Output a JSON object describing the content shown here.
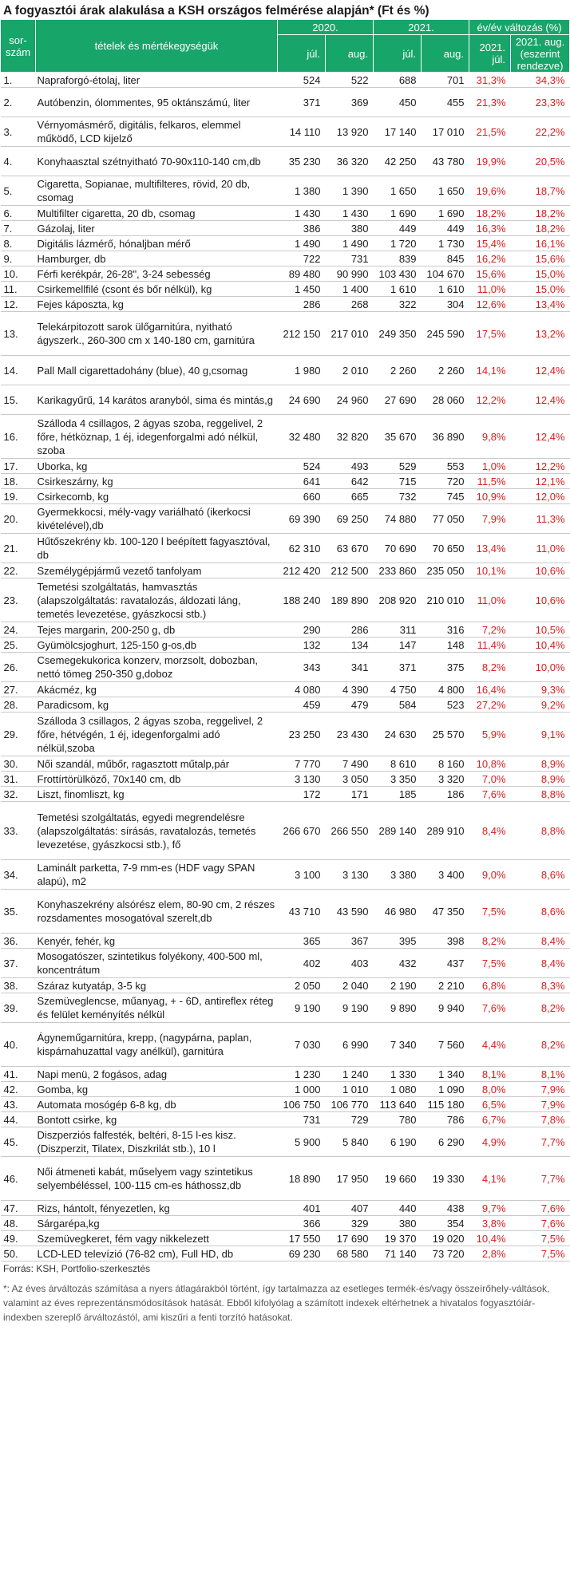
{
  "title": "A fogyasztói árak alakulása a KSH országos felmérése alapján* (Ft és %)",
  "header": {
    "no": "sor-szám",
    "item": "tételek és mértékegységük",
    "y2020": "2020.",
    "y2021": "2021.",
    "change": "év/év változás (%)",
    "jul": "júl.",
    "aug": "aug.",
    "chg_jul": "2021. júl.",
    "chg_aug": "2021. aug. (eszerint rendezve)"
  },
  "rows": [
    {
      "no": "1.",
      "item": "Napraforgó-étolaj, liter",
      "v1": "524",
      "v2": "522",
      "v3": "688",
      "v4": "701",
      "p1": "31,3%",
      "p2": "34,3%"
    },
    {
      "no": "2.",
      "item": "Autóbenzin, ólommentes, 95 oktánszámú, liter",
      "v1": "371",
      "v2": "369",
      "v3": "450",
      "v4": "455",
      "p1": "21,3%",
      "p2": "23,3%"
    },
    {
      "no": "3.",
      "item": "Vérnyomásmérő, digitális, felkaros, elemmel működő, LCD kijelző",
      "v1": "14 110",
      "v2": "13 920",
      "v3": "17 140",
      "v4": "17 010",
      "p1": "21,5%",
      "p2": "22,2%"
    },
    {
      "no": "4.",
      "item": "Konyhaasztal szétnyitható 70-90x110-140 cm,db",
      "v1": "35 230",
      "v2": "36 320",
      "v3": "42 250",
      "v4": "43 780",
      "p1": "19,9%",
      "p2": "20,5%"
    },
    {
      "no": "5.",
      "item": "Cigaretta, Sopianae, multifilteres, rövid, 20 db, csomag",
      "v1": "1 380",
      "v2": "1 390",
      "v3": "1 650",
      "v4": "1 650",
      "p1": "19,6%",
      "p2": "18,7%"
    },
    {
      "no": "6.",
      "item": "Multifilter cigaretta, 20 db, csomag",
      "v1": "1 430",
      "v2": "1 430",
      "v3": "1 690",
      "v4": "1 690",
      "p1": "18,2%",
      "p2": "18,2%"
    },
    {
      "no": "7.",
      "item": "Gázolaj, liter",
      "v1": "386",
      "v2": "380",
      "v3": "449",
      "v4": "449",
      "p1": "16,3%",
      "p2": "18,2%"
    },
    {
      "no": "8.",
      "item": "Digitális lázmérő, hónaljban mérő",
      "v1": "1 490",
      "v2": "1 490",
      "v3": "1 720",
      "v4": "1 730",
      "p1": "15,4%",
      "p2": "16,1%"
    },
    {
      "no": "9.",
      "item": "Hamburger, db",
      "v1": "722",
      "v2": "731",
      "v3": "839",
      "v4": "845",
      "p1": "16,2%",
      "p2": "15,6%"
    },
    {
      "no": "10.",
      "item": "Férfi kerékpár, 26-28\", 3-24 sebesség",
      "v1": "89 480",
      "v2": "90 990",
      "v3": "103 430",
      "v4": "104 670",
      "p1": "15,6%",
      "p2": "15,0%"
    },
    {
      "no": "11.",
      "item": "Csirkemellfilé (csont és bőr nélkül), kg",
      "v1": "1 450",
      "v2": "1 400",
      "v3": "1 610",
      "v4": "1 610",
      "p1": "11,0%",
      "p2": "15,0%"
    },
    {
      "no": "12.",
      "item": "Fejes káposzta, kg",
      "v1": "286",
      "v2": "268",
      "v3": "322",
      "v4": "304",
      "p1": "12,6%",
      "p2": "13,4%"
    },
    {
      "no": "13.",
      "item": "Telekárpitozott sarok ülőgarnitúra, nyitható ágyszerk., 260-300 cm x 140-180 cm, garnitúra",
      "v1": "212 150",
      "v2": "217 010",
      "v3": "249 350",
      "v4": "245 590",
      "p1": "17,5%",
      "p2": "13,2%"
    },
    {
      "no": "14.",
      "item": "Pall Mall cigarettadohány (blue), 40 g,csomag",
      "v1": "1 980",
      "v2": "2 010",
      "v3": "2 260",
      "v4": "2 260",
      "p1": "14,1%",
      "p2": "12,4%"
    },
    {
      "no": "15.",
      "item": "Karikagyűrű, 14 karátos aranyból, sima és mintás,g",
      "v1": "24 690",
      "v2": "24 960",
      "v3": "27 690",
      "v4": "28 060",
      "p1": "12,2%",
      "p2": "12,4%"
    },
    {
      "no": "16.",
      "item": "Szálloda 4 csillagos, 2 ágyas szoba, reggelivel, 2 főre, hétköznap, 1 éj, idegenforgalmi adó nélkül, szoba",
      "v1": "32 480",
      "v2": "32 820",
      "v3": "35 670",
      "v4": "36 890",
      "p1": "9,8%",
      "p2": "12,4%"
    },
    {
      "no": "17.",
      "item": "Uborka, kg",
      "v1": "524",
      "v2": "493",
      "v3": "529",
      "v4": "553",
      "p1": "1,0%",
      "p2": "12,2%"
    },
    {
      "no": "18.",
      "item": "Csirkeszárny, kg",
      "v1": "641",
      "v2": "642",
      "v3": "715",
      "v4": "720",
      "p1": "11,5%",
      "p2": "12,1%"
    },
    {
      "no": "19.",
      "item": "Csirkecomb, kg",
      "v1": "660",
      "v2": "665",
      "v3": "732",
      "v4": "745",
      "p1": "10,9%",
      "p2": "12,0%"
    },
    {
      "no": "20.",
      "item": "Gyermekkocsi, mély-vagy variálható (ikerkocsi kivételével),db",
      "v1": "69 390",
      "v2": "69 250",
      "v3": "74 880",
      "v4": "77 050",
      "p1": "7,9%",
      "p2": "11,3%"
    },
    {
      "no": "21.",
      "item": "Hűtőszekrény kb. 100-120 l beépített fagyasztóval, db",
      "v1": "62 310",
      "v2": "63 670",
      "v3": "70 690",
      "v4": "70 650",
      "p1": "13,4%",
      "p2": "11,0%"
    },
    {
      "no": "22.",
      "item": "Személygépjármű vezető tanfolyam",
      "v1": "212 420",
      "v2": "212 500",
      "v3": "233 860",
      "v4": "235 050",
      "p1": "10,1%",
      "p2": "10,6%"
    },
    {
      "no": "23.",
      "item": "Temetési szolgáltatás, hamvasztás (alapszolgáltatás: ravatalozás, áldozati láng, temetés levezetése, gyászkocsi stb.)",
      "v1": "188 240",
      "v2": "189 890",
      "v3": "208 920",
      "v4": "210 010",
      "p1": "11,0%",
      "p2": "10,6%"
    },
    {
      "no": "24.",
      "item": "Tejes margarin, 200-250 g, db",
      "v1": "290",
      "v2": "286",
      "v3": "311",
      "v4": "316",
      "p1": "7,2%",
      "p2": "10,5%"
    },
    {
      "no": "25.",
      "item": "Gyümölcsjoghurt, 125-150 g-os,db",
      "v1": "132",
      "v2": "134",
      "v3": "147",
      "v4": "148",
      "p1": "11,4%",
      "p2": "10,4%"
    },
    {
      "no": "26.",
      "item": "Csemegekukorica konzerv, morzsolt, dobozban, nettó tömeg 250-350 g,doboz",
      "v1": "343",
      "v2": "341",
      "v3": "371",
      "v4": "375",
      "p1": "8,2%",
      "p2": "10,0%"
    },
    {
      "no": "27.",
      "item": "Akácméz, kg",
      "v1": "4 080",
      "v2": "4 390",
      "v3": "4 750",
      "v4": "4 800",
      "p1": "16,4%",
      "p2": "9,3%"
    },
    {
      "no": "28.",
      "item": "Paradicsom, kg",
      "v1": "459",
      "v2": "479",
      "v3": "584",
      "v4": "523",
      "p1": "27,2%",
      "p2": "9,2%"
    },
    {
      "no": "29.",
      "item": "Szálloda 3 csillagos, 2 ágyas szoba, reggelivel, 2 főre, hétvégén, 1 éj, idegenforgalmi adó nélkül,szoba",
      "v1": "23 250",
      "v2": "23 430",
      "v3": "24 630",
      "v4": "25 570",
      "p1": "5,9%",
      "p2": "9,1%"
    },
    {
      "no": "30.",
      "item": "Női szandál, műbőr, ragasztott műtalp,pár",
      "v1": "7 770",
      "v2": "7 490",
      "v3": "8 610",
      "v4": "8 160",
      "p1": "10,8%",
      "p2": "8,9%"
    },
    {
      "no": "31.",
      "item": "Frottírtörülköző, 70x140 cm,  db",
      "v1": "3 130",
      "v2": "3 050",
      "v3": "3 350",
      "v4": "3 320",
      "p1": "7,0%",
      "p2": "8,9%"
    },
    {
      "no": "32.",
      "item": "Liszt, finomliszt, kg",
      "v1": "172",
      "v2": "171",
      "v3": "185",
      "v4": "186",
      "p1": "7,6%",
      "p2": "8,8%"
    },
    {
      "no": "33.",
      "item": "Temetési szolgáltatás, egyedi megrendelésre (alapszolgáltatás: sírásás, ravatalozás, temetés levezetése, gyászkocsi stb.), fő",
      "v1": "266 670",
      "v2": "266 550",
      "v3": "289 140",
      "v4": "289 910",
      "p1": "8,4%",
      "p2": "8,8%"
    },
    {
      "no": "34.",
      "item": "Laminált parketta, 7-9 mm-es (HDF vagy SPAN alapú), m2",
      "v1": "3 100",
      "v2": "3 130",
      "v3": "3 380",
      "v4": "3 400",
      "p1": "9,0%",
      "p2": "8,6%"
    },
    {
      "no": "35.",
      "item": "Konyhaszekrény alsórész elem, 80-90 cm, 2 részes rozsdamentes mosogatóval szerelt,db",
      "v1": "43 710",
      "v2": "43 590",
      "v3": "46 980",
      "v4": "47 350",
      "p1": "7,5%",
      "p2": "8,6%"
    },
    {
      "no": "36.",
      "item": "Kenyér, fehér, kg",
      "v1": "365",
      "v2": "367",
      "v3": "395",
      "v4": "398",
      "p1": "8,2%",
      "p2": "8,4%"
    },
    {
      "no": "37.",
      "item": "Mosogatószer, szintetikus folyékony, 400-500 ml, koncentrátum",
      "v1": "402",
      "v2": "403",
      "v3": "432",
      "v4": "437",
      "p1": "7,5%",
      "p2": "8,4%"
    },
    {
      "no": "38.",
      "item": "Száraz kutyatáp, 3-5 kg",
      "v1": "2 050",
      "v2": "2 040",
      "v3": "2 190",
      "v4": "2 210",
      "p1": "6,8%",
      "p2": "8,3%"
    },
    {
      "no": "39.",
      "item": "Szemüveglencse, műanyag, + - 6D, antireflex réteg és felület keményítés nélkül",
      "v1": "9 190",
      "v2": "9 190",
      "v3": "9 890",
      "v4": "9 940",
      "p1": "7,6%",
      "p2": "8,2%"
    },
    {
      "no": "40.",
      "item": "Ágyneműgarnitúra, krepp, (nagypárna, paplan, kispárnahuzattal vagy anélkül), garnitúra",
      "v1": "7 030",
      "v2": "6 990",
      "v3": "7 340",
      "v4": "7 560",
      "p1": "4,4%",
      "p2": "8,2%"
    },
    {
      "no": "41.",
      "item": "Napi menü, 2 fogásos, adag",
      "v1": "1 230",
      "v2": "1 240",
      "v3": "1 330",
      "v4": "1 340",
      "p1": "8,1%",
      "p2": "8,1%"
    },
    {
      "no": "42.",
      "item": "Gomba, kg",
      "v1": "1 000",
      "v2": "1 010",
      "v3": "1 080",
      "v4": "1 090",
      "p1": "8,0%",
      "p2": "7,9%"
    },
    {
      "no": "43.",
      "item": "Automata mosógép 6-8 kg,  db",
      "v1": "106 750",
      "v2": "106 770",
      "v3": "113 640",
      "v4": "115 180",
      "p1": "6,5%",
      "p2": "7,9%"
    },
    {
      "no": "44.",
      "item": "Bontott csirke, kg",
      "v1": "731",
      "v2": "729",
      "v3": "780",
      "v4": "786",
      "p1": "6,7%",
      "p2": "7,8%"
    },
    {
      "no": "45.",
      "item": "Diszperziós falfesték, beltéri, 8-15 l-es kisz. (Diszperzit, Tilatex, Diszkrilát stb.), 10 l",
      "v1": "5 900",
      "v2": "5 840",
      "v3": "6 190",
      "v4": "6 290",
      "p1": "4,9%",
      "p2": "7,7%"
    },
    {
      "no": "46.",
      "item": "Női átmeneti kabát, műselyem vagy szintetikus selyembéléssel, 100-115 cm-es háthossz,db",
      "v1": "18 890",
      "v2": "17 950",
      "v3": "19 660",
      "v4": "19 330",
      "p1": "4,1%",
      "p2": "7,7%"
    },
    {
      "no": "47.",
      "item": "Rizs, hántolt, fényezetlen, kg",
      "v1": "401",
      "v2": "407",
      "v3": "440",
      "v4": "438",
      "p1": "9,7%",
      "p2": "7,6%"
    },
    {
      "no": "48.",
      "item": "Sárgarépa,kg",
      "v1": "366",
      "v2": "329",
      "v3": "380",
      "v4": "354",
      "p1": "3,8%",
      "p2": "7,6%"
    },
    {
      "no": "49.",
      "item": "Szemüvegkeret, fém vagy nikkelezett",
      "v1": "17 550",
      "v2": "17 690",
      "v3": "19 370",
      "v4": "19 020",
      "p1": "10,4%",
      "p2": "7,5%"
    },
    {
      "no": "50.",
      "item": "LCD-LED televízió (76-82 cm), Full HD, db",
      "v1": "69 230",
      "v2": "68 580",
      "v3": "71 140",
      "v4": "73 720",
      "p1": "2,8%",
      "p2": "7,5%"
    }
  ],
  "source": "Forrás: KSH, Portfolio-szerkesztés",
  "note": "*: Az éves árváltozás számítása a nyers átlagárakból történt, így tartalmazza az esetleges termék-és/vagy összeírőhely-váltások, valamint az éves reprezentánsmódosítások hatását. Ebből kifolyólag a számított indexek eltérhetnek a hivatalos fogyasztóiár-indexben szereplő árváltozástól, ami kiszűri a fenti torzító hatásokat."
}
